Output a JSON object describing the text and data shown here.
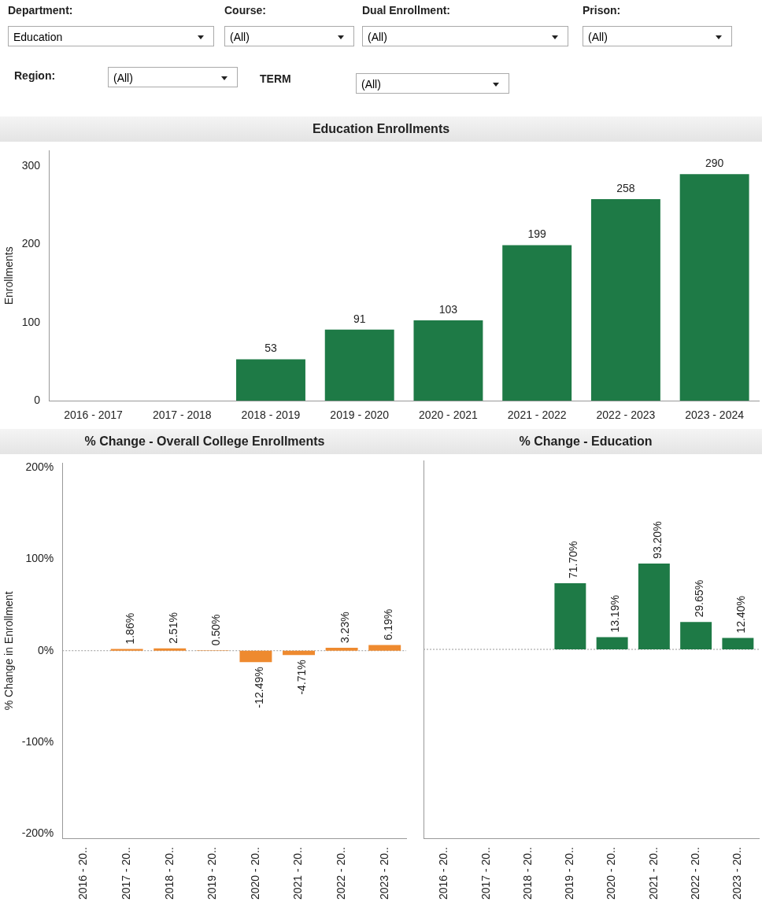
{
  "chart_data": [
    {
      "type": "other",
      "annotations": [
        "Department:",
        "Education",
        "Course:",
        "(All)",
        "Dual Enrollment:",
        "(All)",
        "Prison:",
        "(All)",
        "Region:",
        "(All)",
        "TERM",
        "(All)"
      ]
    },
    {
      "type": "bar",
      "title": "Education Enrollments",
      "ylabel": "Enrollments",
      "categories": [
        "2016 - 2017",
        "2017 - 2018",
        "2018 - 2019",
        "2019 - 2020",
        "2020 - 2021",
        "2021 - 2022",
        "2022 - 2023",
        "2023 - 2024"
      ],
      "values": [
        null,
        null,
        53,
        91,
        103,
        199,
        258,
        290
      ],
      "color": "#1e7a46",
      "ylim": [
        0,
        320
      ],
      "yticks": [
        0,
        100,
        200,
        300
      ],
      "data_labels": true
    },
    {
      "type": "bar",
      "title": "% Change - Overall College Enrollments",
      "ylabel": "% Change in Enrollment",
      "categories": [
        "2016 - 20..",
        "2017 - 20..",
        "2018 - 20..",
        "2019 - 20..",
        "2020 - 20..",
        "2021 - 20..",
        "2022 - 20..",
        "2023 - 20.."
      ],
      "values": [
        null,
        1.86,
        2.51,
        0.5,
        -12.49,
        -4.71,
        3.23,
        6.19
      ],
      "value_labels": [
        null,
        "1.86%",
        "2.51%",
        "0.50%",
        "-12.49%",
        "-4.71%",
        "3.23%",
        "6.19%"
      ],
      "color": "#ee8a2f",
      "ylim": [
        -205,
        205
      ],
      "yticks": [
        {
          "value": -200,
          "label": "-200%"
        },
        {
          "value": -100,
          "label": "-100%"
        },
        {
          "value": 0,
          "label": "0%"
        },
        {
          "value": 100,
          "label": "100%"
        },
        {
          "value": 200,
          "label": "200%"
        }
      ],
      "ref_lines": [
        {
          "axis": "y",
          "value": 0,
          "line_style": "dotted",
          "color": "#999999"
        }
      ]
    },
    {
      "type": "bar",
      "title": "% Change - Education",
      "categories": [
        "2016 - 20..",
        "2017 - 20..",
        "2018 - 20..",
        "2019 - 20..",
        "2020 - 20..",
        "2021 - 20..",
        "2022 - 20..",
        "2023 - 20.."
      ],
      "values": [
        null,
        null,
        null,
        71.7,
        13.19,
        93.2,
        29.65,
        12.4
      ],
      "value_labels": [
        null,
        null,
        null,
        "71.70%",
        "13.19%",
        "93.20%",
        "29.65%",
        "12.40%"
      ],
      "color": "#1e7a46",
      "ylim": [
        -205,
        205
      ],
      "tick_labels": "x",
      "ref_lines": [
        {
          "axis": "y",
          "value": 0,
          "line_style": "dotted",
          "color": "#999999"
        }
      ]
    }
  ]
}
